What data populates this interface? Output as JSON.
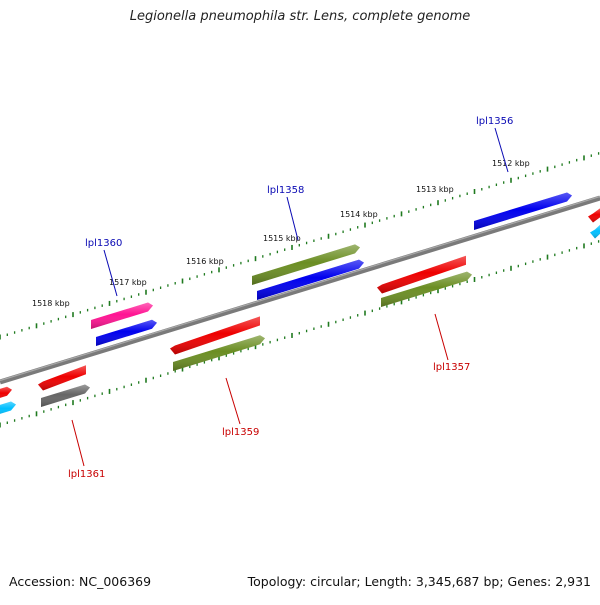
{
  "title": "Legionella pneumophila str. Lens, complete genome",
  "footer": {
    "accession": "Accession: NC_006369",
    "summary": "Topology: circular; Length: 3,345,687 bp; Genes: 2,931"
  },
  "colors": {
    "backbone": "#808080",
    "ticks": "#1f7a1f",
    "label_top": "#0a0ab4",
    "label_bottom": "#c80000"
  },
  "kbp_labels": [
    "1512 kbp",
    "1513 kbp",
    "1514 kbp",
    "1515 kbp",
    "1516 kbp",
    "1517 kbp",
    "1518 kbp"
  ],
  "gene_labels_top": [
    "lpl1356",
    "lpl1358",
    "lpl1360"
  ],
  "gene_labels_bottom": [
    "lpl1357",
    "lpl1359",
    "lpl1361"
  ],
  "features": [
    {
      "strand": "top",
      "color": "#ff1493",
      "name": "pink"
    },
    {
      "strand": "top",
      "color": "#0000ee",
      "name": "blue"
    },
    {
      "strand": "top",
      "color": "#6b8e23",
      "name": "olive"
    },
    {
      "strand": "bottom",
      "color": "#ee0000",
      "name": "red"
    },
    {
      "strand": "bottom",
      "color": "#6b8e23",
      "name": "olive"
    },
    {
      "strand": "bottom",
      "color": "#666666",
      "name": "gray"
    },
    {
      "strand": "edge",
      "color": "#00bfff",
      "name": "cyan"
    }
  ]
}
